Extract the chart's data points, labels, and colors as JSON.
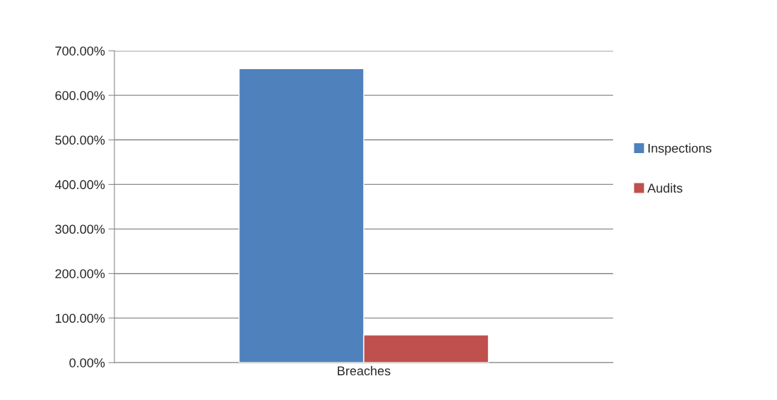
{
  "chart_data": {
    "type": "bar",
    "categories": [
      "Breaches"
    ],
    "series": [
      {
        "name": "Inspections",
        "color": "#4f81bd",
        "values": [
          660
        ]
      },
      {
        "name": "Audits",
        "color": "#c0504d",
        "values": [
          62
        ]
      }
    ],
    "ylim": [
      0,
      700
    ],
    "yticks": [
      {
        "value": 0,
        "label": "0.00%"
      },
      {
        "value": 100,
        "label": "100.00%"
      },
      {
        "value": 200,
        "label": "200.00%"
      },
      {
        "value": 300,
        "label": "300.00%"
      },
      {
        "value": 400,
        "label": "400.00%"
      },
      {
        "value": 500,
        "label": "500.00%"
      },
      {
        "value": 600,
        "label": "600.00%"
      },
      {
        "value": 700,
        "label": "700.00%"
      }
    ],
    "grid": "y",
    "legend": "right"
  }
}
